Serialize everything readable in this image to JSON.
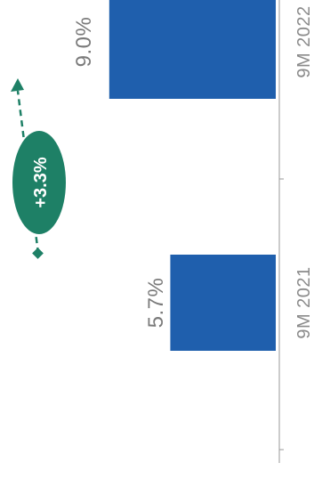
{
  "chart_data": {
    "type": "bar",
    "orientation": "rotated-90-clockwise",
    "categories": [
      "9M 2021",
      "9M 2022"
    ],
    "series": [
      {
        "values": [
          5.7,
          9.0
        ]
      }
    ],
    "value_labels": [
      "5.7%",
      "9.0%"
    ],
    "unit": "%",
    "bar_color": "#1F5FAD",
    "axis_color": "#9a9a9a",
    "annotation": {
      "text": "+3.3%",
      "color": "#1E8066",
      "style": "dashed-arrow"
    }
  }
}
